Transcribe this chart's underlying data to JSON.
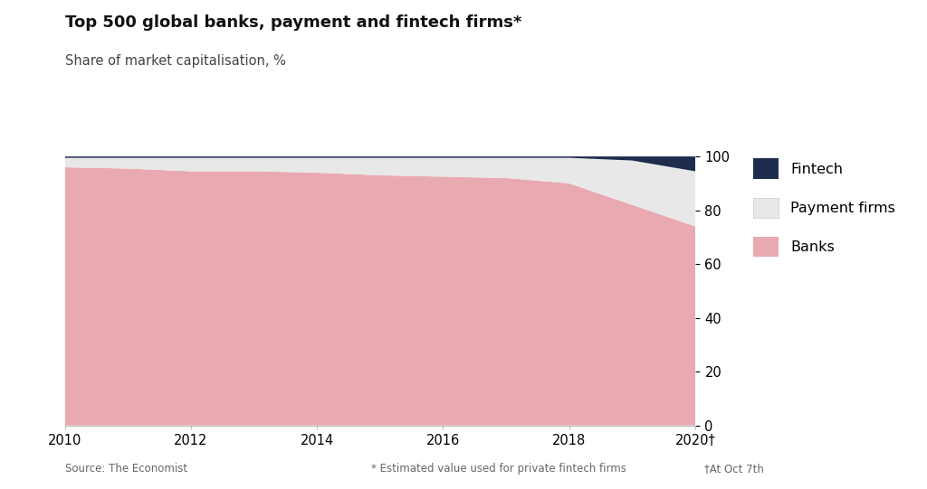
{
  "title": "Top 500 global banks, payment and fintech firms*",
  "subtitle": "Share of market capitalisation, %",
  "years": [
    2010,
    2011,
    2012,
    2013,
    2014,
    2015,
    2016,
    2017,
    2018,
    2019,
    2020
  ],
  "banks": [
    96,
    95.5,
    94.5,
    94.5,
    94,
    93,
    92.5,
    92,
    90,
    82,
    74
  ],
  "payment_firms": [
    3.5,
    4.0,
    5.0,
    5.0,
    5.5,
    6.5,
    7.0,
    7.5,
    9.5,
    16.5,
    20.5
  ],
  "fintech": [
    0.5,
    0.5,
    0.5,
    0.5,
    0.5,
    0.5,
    0.5,
    0.5,
    0.5,
    1.5,
    5.5
  ],
  "colors": {
    "banks": "#e8aab0",
    "payment_firms": "#e8e8e8",
    "fintech": "#1e2d4e"
  },
  "ylim": [
    0,
    100
  ],
  "yticks": [
    0,
    20,
    40,
    60,
    80,
    100
  ],
  "xticks": [
    2010,
    2012,
    2014,
    2016,
    2018,
    2020
  ],
  "xlabel_last": "2020†",
  "source_text": "Source: The Economist",
  "footnote_text": "* Estimated value used for private fintech firms",
  "footnote2_text": "†At Oct 7th",
  "background_color": "#ffffff",
  "grid_color": "#bbbbbb"
}
